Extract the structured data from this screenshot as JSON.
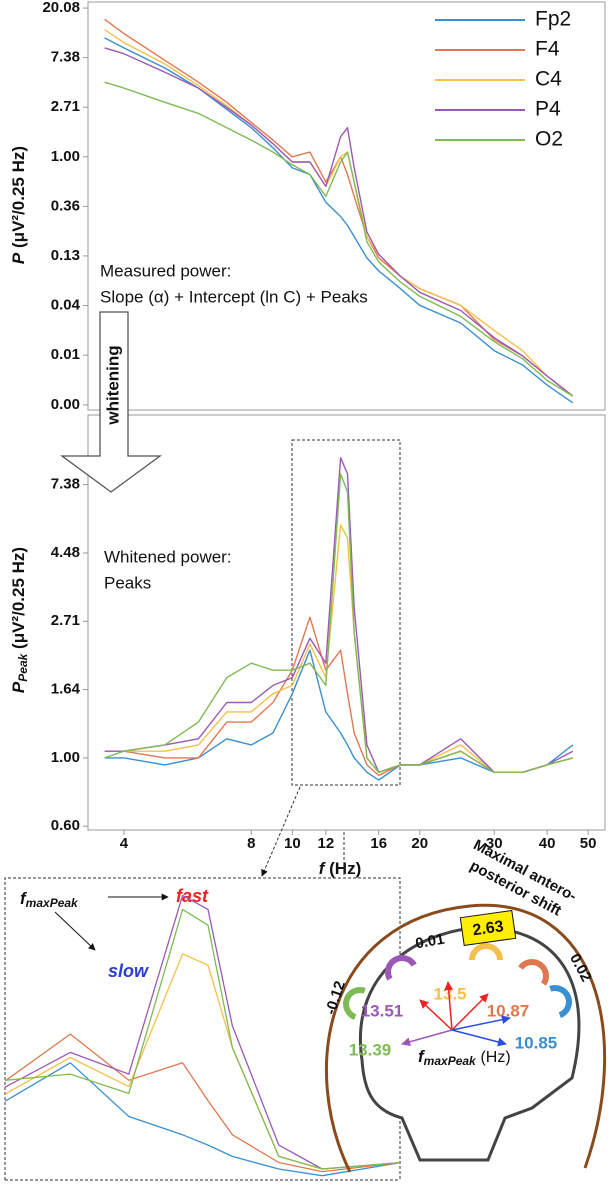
{
  "chart_data": [
    {
      "type": "line",
      "ylabel_symbol": "P",
      "ylabel_unit": "(μV²/0.25 Hz)",
      "log_x": true,
      "log_y": true,
      "xlim": [
        3.29,
        54.8
      ],
      "ylim": [
        0.00605,
        22.7
      ],
      "yticks": [
        {
          "value": 0.0067,
          "label": "0.00"
        },
        {
          "value": 0.0183,
          "label": "0.01"
        },
        {
          "value": 0.0498,
          "label": "0.04"
        },
        {
          "value": 0.1353,
          "label": "0.13"
        },
        {
          "value": 0.3679,
          "label": "0.36"
        },
        {
          "value": 1,
          "label": "1.00"
        },
        {
          "value": 2.7183,
          "label": "2.71"
        },
        {
          "value": 7.3891,
          "label": "7.38"
        },
        {
          "value": 20.0855,
          "label": "20.08"
        }
      ],
      "x": [
        3.6,
        4,
        5,
        6,
        7,
        8,
        9,
        10,
        11,
        12,
        13,
        13.5,
        14,
        15,
        16,
        18,
        20,
        25,
        30,
        35,
        40,
        46
      ],
      "series": [
        {
          "name": "Fp2",
          "color": "#3a8fd0",
          "values": [
            11,
            9,
            6,
            4,
            2.6,
            1.8,
            1.2,
            0.8,
            0.7,
            0.4,
            0.3,
            0.25,
            0.2,
            0.13,
            0.1,
            0.07,
            0.05,
            0.035,
            0.02,
            0.015,
            0.01,
            0.007
          ]
        },
        {
          "name": "F4",
          "color": "#e0784f",
          "values": [
            16,
            12,
            7,
            4.5,
            3,
            2,
            1.4,
            1,
            1.1,
            0.6,
            1.0,
            0.7,
            0.45,
            0.2,
            0.13,
            0.09,
            0.07,
            0.05,
            0.025,
            0.018,
            0.012,
            0.008
          ]
        },
        {
          "name": "C4",
          "color": "#f3c04a",
          "values": [
            13,
            10,
            6.5,
            4.2,
            2.8,
            1.9,
            1.3,
            0.9,
            0.9,
            0.55,
            1.0,
            1.1,
            0.6,
            0.2,
            0.14,
            0.09,
            0.07,
            0.05,
            0.03,
            0.02,
            0.012,
            0.008
          ]
        },
        {
          "name": "P4",
          "color": "#9b59b6",
          "values": [
            9,
            8,
            5.5,
            4,
            2.7,
            1.9,
            1.3,
            0.9,
            0.9,
            0.55,
            1.5,
            1.8,
            0.8,
            0.22,
            0.14,
            0.09,
            0.065,
            0.045,
            0.026,
            0.018,
            0.012,
            0.008
          ]
        },
        {
          "name": "O2",
          "color": "#7fba54",
          "values": [
            4.5,
            4,
            3,
            2.4,
            1.8,
            1.4,
            1.1,
            0.85,
            0.7,
            0.45,
            0.9,
            1.1,
            0.6,
            0.18,
            0.12,
            0.08,
            0.06,
            0.04,
            0.024,
            0.017,
            0.011,
            0.008
          ]
        }
      ],
      "legend": "top-right",
      "annotations": [
        "Measured power:",
        "Slope (α) + Intercept (ln C) + Peaks"
      ]
    },
    {
      "type": "line",
      "ylabel_symbol": "P",
      "ylabel_subscript": "Peak",
      "ylabel_unit": "(μV²/0.25 Hz)",
      "log_x": true,
      "log_y": true,
      "xlabel_symbol": "f",
      "xlabel_unit": "(Hz)",
      "xlim": [
        3.29,
        54.8
      ],
      "ylim": [
        0.59,
        12.3
      ],
      "xticks": [
        4,
        8,
        10,
        12,
        16,
        20,
        30,
        40,
        50
      ],
      "yticks": [
        {
          "value": 0.6065,
          "label": "0.60"
        },
        {
          "value": 1,
          "label": "1.00"
        },
        {
          "value": 1.6487,
          "label": "1.64"
        },
        {
          "value": 2.7183,
          "label": "2.71"
        },
        {
          "value": 4.4817,
          "label": "4.48"
        },
        {
          "value": 7.3891,
          "label": "7.38"
        }
      ],
      "x": [
        3.6,
        4,
        5,
        6,
        7,
        8,
        9,
        10,
        11,
        12,
        13,
        13.5,
        14,
        15,
        16,
        18,
        20,
        25,
        30,
        35,
        40,
        46
      ],
      "series": [
        {
          "name": "Fp2",
          "color": "#3a8fd0",
          "values": [
            1.0,
            1.0,
            0.95,
            1.0,
            1.15,
            1.1,
            1.2,
            1.6,
            2.2,
            1.4,
            1.2,
            1.1,
            1.0,
            0.9,
            0.85,
            0.95,
            0.95,
            1.0,
            0.9,
            0.9,
            0.95,
            1.1
          ]
        },
        {
          "name": "F4",
          "color": "#e0784f",
          "values": [
            1.05,
            1.05,
            1.0,
            1.0,
            1.3,
            1.3,
            1.5,
            1.9,
            2.8,
            1.9,
            2.2,
            1.6,
            1.2,
            0.95,
            0.88,
            0.95,
            0.95,
            1.05,
            0.9,
            0.9,
            0.95,
            1.0
          ]
        },
        {
          "name": "C4",
          "color": "#f3c04a",
          "values": [
            1.05,
            1.05,
            1.05,
            1.1,
            1.4,
            1.4,
            1.6,
            1.7,
            2.3,
            1.8,
            5.5,
            5.0,
            2.5,
            1.0,
            0.9,
            0.95,
            0.95,
            1.1,
            0.9,
            0.9,
            0.95,
            1.0
          ]
        },
        {
          "name": "P4",
          "color": "#9b59b6",
          "values": [
            1.05,
            1.05,
            1.1,
            1.15,
            1.5,
            1.5,
            1.7,
            1.8,
            2.4,
            2.0,
            9.0,
            8.0,
            3.0,
            1.1,
            0.9,
            0.95,
            0.95,
            1.15,
            0.9,
            0.9,
            0.95,
            1.05
          ]
        },
        {
          "name": "O2",
          "color": "#7fba54",
          "values": [
            1.0,
            1.05,
            1.1,
            1.3,
            1.8,
            2.0,
            1.9,
            1.9,
            2.0,
            1.7,
            8.0,
            7.0,
            2.5,
            1.0,
            0.9,
            0.95,
            0.95,
            1.05,
            0.9,
            0.9,
            0.95,
            1.0
          ]
        }
      ],
      "annotations": [
        "Whitened power:",
        "Peaks"
      ]
    }
  ],
  "whitening_label": "whitening",
  "inset": {
    "symbol": "f",
    "subscript": "maxPeak",
    "fast": "fast",
    "slow": "slow"
  },
  "head_diagram": {
    "title": [
      "Maximal antero-",
      "posterior shift"
    ],
    "shift": 2.63,
    "shifts": [
      -0.12,
      0.01,
      0.02
    ],
    "peaks": [
      {
        "value": 13.51,
        "color": "#9b59b6"
      },
      {
        "value": 13.39,
        "color": "#7fba54"
      },
      {
        "value": 13.5,
        "color": "#f3c04a"
      },
      {
        "value": 10.87,
        "color": "#e0784f"
      },
      {
        "value": 10.85,
        "color": "#3a8fd0"
      }
    ],
    "axis_symbol": "f",
    "axis_subscript": "maxPeak",
    "axis_unit": "(Hz)"
  }
}
